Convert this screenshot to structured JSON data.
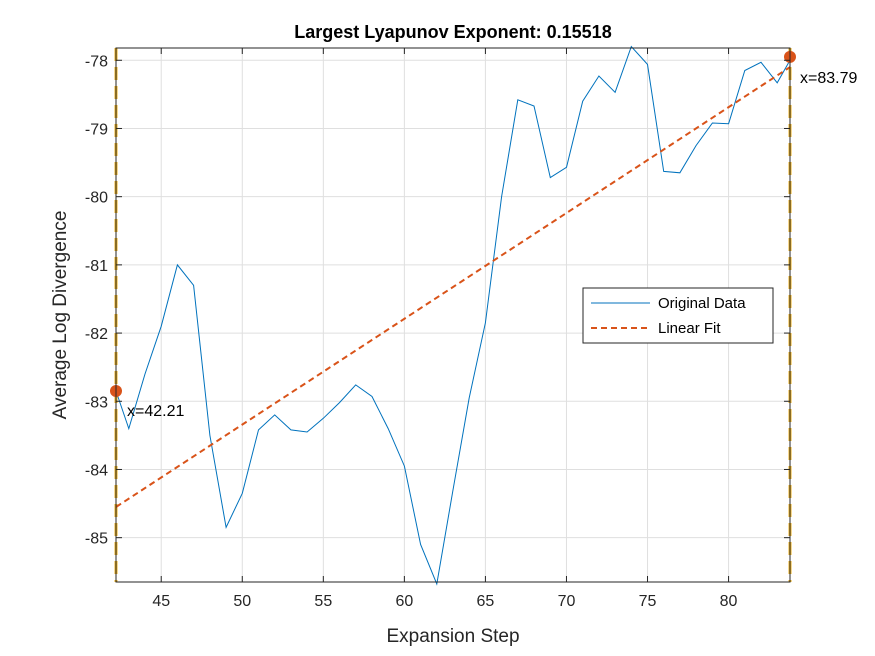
{
  "chart_data": {
    "type": "line",
    "title": "Largest Lyapunov Exponent: 0.15518",
    "xlabel": "Expansion Step",
    "ylabel": "Average Log Divergence",
    "xlim": [
      42.21,
      83.79
    ],
    "ylim": [
      -85.65,
      -77.82
    ],
    "xticks": [
      45,
      50,
      55,
      60,
      65,
      70,
      75,
      80
    ],
    "yticks": [
      -78,
      -79,
      -80,
      -81,
      -82,
      -83,
      -84,
      -85
    ],
    "grid": true,
    "legend_position": "right",
    "series": [
      {
        "name": "Original Data",
        "style": "solid",
        "color": "#0072BD",
        "x": [
          42.21,
          43,
          44,
          45,
          46,
          47,
          48,
          49,
          50,
          51,
          52,
          53,
          54,
          55,
          56,
          57,
          58,
          59,
          60,
          61,
          62,
          63,
          64,
          65,
          66,
          67,
          68,
          69,
          70,
          71,
          72,
          73,
          74,
          75,
          76,
          77,
          78,
          79,
          80,
          81,
          82,
          83,
          83.79
        ],
        "y": [
          -82.85,
          -83.4,
          -82.6,
          -81.9,
          -81.0,
          -81.3,
          -83.5,
          -84.85,
          -84.35,
          -83.42,
          -83.2,
          -83.42,
          -83.45,
          -83.25,
          -83.02,
          -82.76,
          -82.93,
          -83.4,
          -83.95,
          -85.1,
          -85.68,
          -84.3,
          -82.95,
          -81.85,
          -80.0,
          -78.58,
          -78.67,
          -79.72,
          -79.57,
          -78.6,
          -78.23,
          -78.47,
          -77.8,
          -78.06,
          -79.63,
          -79.65,
          -79.25,
          -78.92,
          -78.93,
          -78.15,
          -78.03,
          -78.33,
          -78.0
        ]
      },
      {
        "name": "Linear Fit",
        "style": "dashed",
        "color": "#D95319",
        "x": [
          42.21,
          83.79
        ],
        "y": [
          -84.55,
          -78.1
        ]
      }
    ],
    "xlines": {
      "color": "#EDB120",
      "values": [
        42.21,
        83.79
      ]
    },
    "markers": [
      {
        "x": 42.21,
        "y": -82.85,
        "label": "x=42.21",
        "color": "#D95319"
      },
      {
        "x": 83.79,
        "y": -77.95,
        "label": "x=83.79",
        "color": "#D95319"
      }
    ]
  }
}
